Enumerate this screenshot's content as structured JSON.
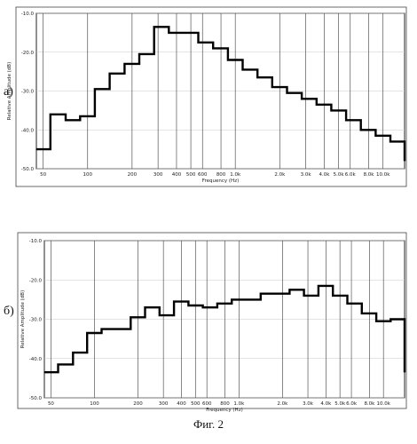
{
  "caption": "Фиг. 2",
  "chart_data": [
    {
      "type": "line",
      "label": "а)",
      "xlabel": "Frequency (Hz)",
      "ylabel": "Relative Amplitude (dB)",
      "xscale": "log",
      "xlim": [
        45,
        14000
      ],
      "ylim": [
        -50,
        -10
      ],
      "yticks": [
        -10,
        -20,
        -30,
        -40,
        -50
      ],
      "ytick_labels": [
        "-10.0",
        "-20.0",
        "-30.0",
        "-40.0",
        "-50.0"
      ],
      "xticks": [
        50,
        100,
        200,
        300,
        400,
        500,
        600,
        800,
        1000,
        2000,
        3000,
        4000,
        5000,
        6000,
        8000,
        10000
      ],
      "xtick_labels": [
        "50",
        "100",
        "200",
        "300",
        "400",
        "500",
        "600",
        "800",
        "1.0k",
        "2.0k",
        "3.0k",
        "4.0k",
        "5.0k",
        "6.0k",
        "8.0k",
        "10.0k"
      ],
      "x": [
        45,
        56,
        71,
        89,
        112,
        141,
        178,
        224,
        282,
        355,
        447,
        562,
        708,
        891,
        1122,
        1413,
        1778,
        2239,
        2818,
        3548,
        4467,
        5623,
        7079,
        8913,
        11220,
        14000
      ],
      "values": [
        -45,
        -36,
        -37.5,
        -36.5,
        -29.5,
        -25.5,
        -23,
        -20.5,
        -13.5,
        -15,
        -15,
        -17.5,
        -19,
        -22,
        -24.5,
        -26.5,
        -29,
        -30.5,
        -32,
        -33.5,
        -35,
        -37.5,
        -40,
        -41.5,
        -43,
        -48
      ]
    },
    {
      "type": "line",
      "label": "б)",
      "xlabel": "Frequency (Hz)",
      "ylabel": "Relative Amplitude (dB)",
      "xscale": "log",
      "xlim": [
        45,
        14000
      ],
      "ylim": [
        -50,
        -10
      ],
      "yticks": [
        -10,
        -20,
        -30,
        -40,
        -50
      ],
      "ytick_labels": [
        "-10.0",
        "-20.0",
        "-30.0",
        "-40.0",
        "-50.0"
      ],
      "xticks": [
        50,
        100,
        200,
        300,
        400,
        500,
        600,
        800,
        1000,
        2000,
        3000,
        4000,
        5000,
        6000,
        8000,
        10000
      ],
      "xtick_labels": [
        "50",
        "100",
        "200",
        "300",
        "400",
        "500",
        "600",
        "800",
        "1.0k",
        "2.0k",
        "3.0k",
        "4.0k",
        "5.0k",
        "6.0k",
        "8.0k",
        "10.0k"
      ],
      "x": [
        45,
        56,
        71,
        89,
        112,
        141,
        178,
        224,
        282,
        355,
        447,
        562,
        708,
        891,
        1122,
        1413,
        1778,
        2239,
        2818,
        3548,
        4467,
        5623,
        7079,
        8913,
        11220,
        14000
      ],
      "values": [
        -43.5,
        -41.5,
        -38.5,
        -33.5,
        -32.5,
        -32.5,
        -29.5,
        -27,
        -29,
        -25.5,
        -26.5,
        -27,
        -26,
        -25,
        -25,
        -23.5,
        -23.5,
        -22.5,
        -24,
        -21.5,
        -24,
        -26,
        -28.5,
        -30.5,
        -30,
        -43.5
      ]
    }
  ]
}
